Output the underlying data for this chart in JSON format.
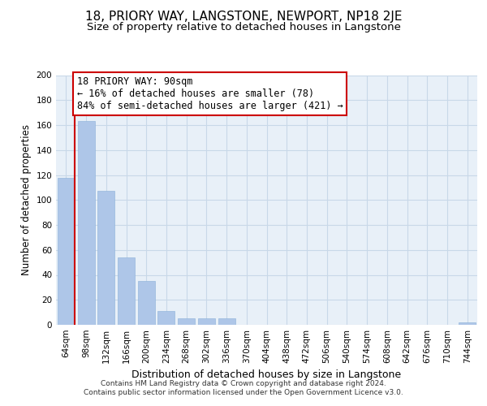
{
  "title": "18, PRIORY WAY, LANGSTONE, NEWPORT, NP18 2JE",
  "subtitle": "Size of property relative to detached houses in Langstone",
  "xlabel": "Distribution of detached houses by size in Langstone",
  "ylabel": "Number of detached properties",
  "categories": [
    "64sqm",
    "98sqm",
    "132sqm",
    "166sqm",
    "200sqm",
    "234sqm",
    "268sqm",
    "302sqm",
    "336sqm",
    "370sqm",
    "404sqm",
    "438sqm",
    "472sqm",
    "506sqm",
    "540sqm",
    "574sqm",
    "608sqm",
    "642sqm",
    "676sqm",
    "710sqm",
    "744sqm"
  ],
  "values": [
    118,
    163,
    107,
    54,
    35,
    11,
    5,
    5,
    5,
    0,
    0,
    0,
    0,
    0,
    0,
    0,
    0,
    0,
    0,
    0,
    2
  ],
  "bar_color": "#aec6e8",
  "vline_color": "#cc0000",
  "annotation_line1": "18 PRIORY WAY: 90sqm",
  "annotation_line2": "← 16% of detached houses are smaller (78)",
  "annotation_line3": "84% of semi-detached houses are larger (421) →",
  "annotation_box_edge_color": "#cc0000",
  "annotation_box_face_color": "#ffffff",
  "ylim": [
    0,
    200
  ],
  "yticks": [
    0,
    20,
    40,
    60,
    80,
    100,
    120,
    140,
    160,
    180,
    200
  ],
  "footer_line1": "Contains HM Land Registry data © Crown copyright and database right 2024.",
  "footer_line2": "Contains public sector information licensed under the Open Government Licence v3.0.",
  "background_color": "#ffffff",
  "grid_color": "#c8d8e8",
  "title_fontsize": 11,
  "subtitle_fontsize": 9.5,
  "ylabel_fontsize": 8.5,
  "xlabel_fontsize": 9,
  "tick_fontsize": 7.5,
  "footer_fontsize": 6.5,
  "ann_fontsize": 8.5
}
